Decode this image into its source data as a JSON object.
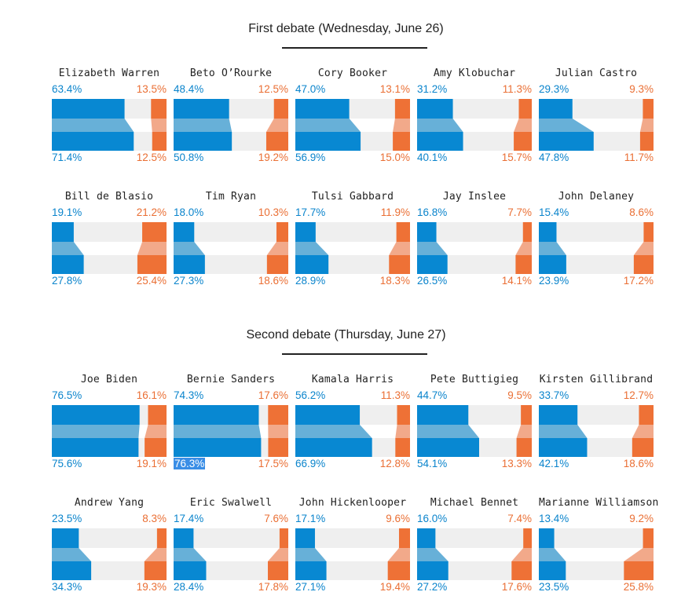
{
  "colors": {
    "blue": "#0888d2",
    "blue_light": "#67b0d8",
    "orange": "#ee7136",
    "orange_light": "#f2a98a",
    "track": "#efefef"
  },
  "chart_data": [
    {
      "type": "bar",
      "title": "First debate (Wednesday, June 26)",
      "candidates": [
        {
          "name": "Elizabeth Warren",
          "blue_before": 63.4,
          "orange_before": 13.5,
          "blue_after": 71.4,
          "orange_after": 12.5
        },
        {
          "name": "Beto O’Rourke",
          "blue_before": 48.4,
          "orange_before": 12.5,
          "blue_after": 50.8,
          "orange_after": 19.2
        },
        {
          "name": "Cory Booker",
          "blue_before": 47.0,
          "orange_before": 13.1,
          "blue_after": 56.9,
          "orange_after": 15.0
        },
        {
          "name": "Amy Klobuchar",
          "blue_before": 31.2,
          "orange_before": 11.3,
          "blue_after": 40.1,
          "orange_after": 15.7
        },
        {
          "name": "Julian Castro",
          "blue_before": 29.3,
          "orange_before": 9.3,
          "blue_after": 47.8,
          "orange_after": 11.7
        },
        {
          "name": "Bill de Blasio",
          "blue_before": 19.1,
          "orange_before": 21.2,
          "blue_after": 27.8,
          "orange_after": 25.4
        },
        {
          "name": "Tim Ryan",
          "blue_before": 18.0,
          "orange_before": 10.3,
          "blue_after": 27.3,
          "orange_after": 18.6
        },
        {
          "name": "Tulsi Gabbard",
          "blue_before": 17.7,
          "orange_before": 11.9,
          "blue_after": 28.9,
          "orange_after": 18.3
        },
        {
          "name": "Jay Inslee",
          "blue_before": 16.8,
          "orange_before": 7.7,
          "blue_after": 26.5,
          "orange_after": 14.1
        },
        {
          "name": "John Delaney",
          "blue_before": 15.4,
          "orange_before": 8.6,
          "blue_after": 23.9,
          "orange_after": 17.2
        }
      ]
    },
    {
      "type": "bar",
      "title": "Second debate (Thursday, June 27)",
      "candidates": [
        {
          "name": "Joe Biden",
          "blue_before": 76.5,
          "orange_before": 16.1,
          "blue_after": 75.6,
          "orange_after": 19.1
        },
        {
          "name": "Bernie Sanders",
          "blue_before": 74.3,
          "orange_before": 17.6,
          "blue_after": 76.3,
          "orange_after": 17.5,
          "highlight": "blue_after"
        },
        {
          "name": "Kamala Harris",
          "blue_before": 56.2,
          "orange_before": 11.3,
          "blue_after": 66.9,
          "orange_after": 12.8
        },
        {
          "name": "Pete Buttigieg",
          "blue_before": 44.7,
          "orange_before": 9.5,
          "blue_after": 54.1,
          "orange_after": 13.3
        },
        {
          "name": "Kirsten Gillibrand",
          "blue_before": 33.7,
          "orange_before": 12.7,
          "blue_after": 42.1,
          "orange_after": 18.6
        },
        {
          "name": "Andrew Yang",
          "blue_before": 23.5,
          "orange_before": 8.3,
          "blue_after": 34.3,
          "orange_after": 19.3
        },
        {
          "name": "Eric Swalwell",
          "blue_before": 17.4,
          "orange_before": 7.6,
          "blue_after": 28.4,
          "orange_after": 17.8
        },
        {
          "name": "John Hickenlooper",
          "blue_before": 17.1,
          "orange_before": 9.6,
          "blue_after": 27.1,
          "orange_after": 19.4
        },
        {
          "name": "Michael Bennet",
          "blue_before": 16.0,
          "orange_before": 7.4,
          "blue_after": 27.2,
          "orange_after": 17.6
        },
        {
          "name": "Marianne Williamson",
          "blue_before": 13.4,
          "orange_before": 9.2,
          "blue_after": 23.5,
          "orange_after": 25.8
        }
      ]
    }
  ]
}
